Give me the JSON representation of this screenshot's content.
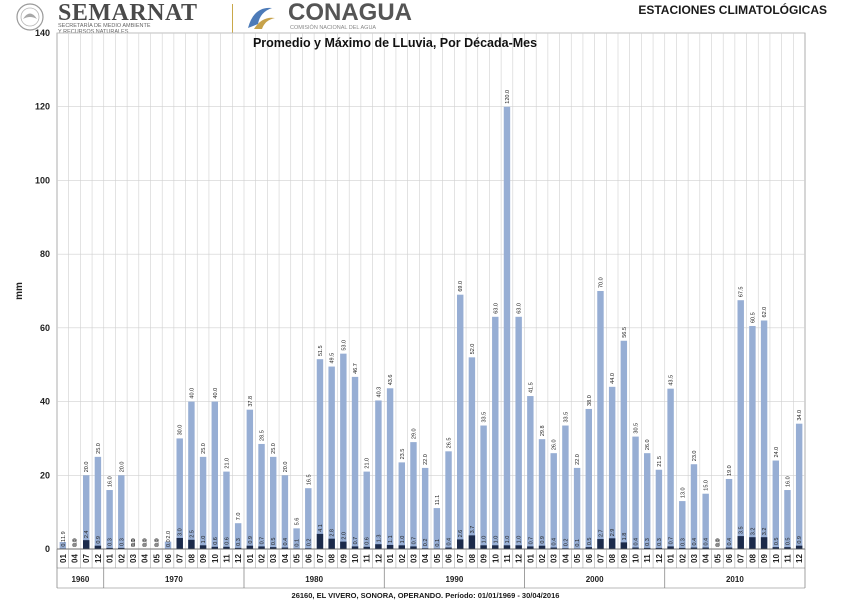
{
  "header": {
    "brand1": "SEMARNAT",
    "brand1_sub_1": "SECRETARÍA DE MEDIO AMBIENTE",
    "brand1_sub_2": "Y RECURSOS NATURALES",
    "brand2": "CONAGUA",
    "brand2_sub": "COMISIÓN NACIONAL DEL AGUA",
    "doc_title": "ESTACIONES CLIMATOLÓGICAS"
  },
  "footer": "26160, EL VIVERO, SONORA, OPERANDO. Período: 01/01/1969 - 30/04/2016",
  "colors": {
    "max_bar": "#97aed4",
    "avg_bar": "#1b2a4a",
    "grid": "#d0d0d0"
  },
  "chart_data": {
    "type": "bar",
    "title": "Promedio y Máximo de LLuvia, Por Década-Mes",
    "ylabel": "mm",
    "ylim": [
      0,
      140
    ],
    "yticks": [
      0,
      20,
      40,
      60,
      80,
      100,
      120,
      140
    ],
    "grid": true,
    "decades": [
      {
        "label": "1960",
        "months": [
          "01",
          "04",
          "07",
          "12"
        ]
      },
      {
        "label": "1970",
        "months": [
          "01",
          "02",
          "03",
          "04",
          "05",
          "06",
          "07",
          "08",
          "09",
          "10",
          "11",
          "12"
        ]
      },
      {
        "label": "1980",
        "months": [
          "01",
          "02",
          "03",
          "04",
          "05",
          "06",
          "07",
          "08",
          "09",
          "10",
          "11",
          "12"
        ]
      },
      {
        "label": "1990",
        "months": [
          "01",
          "02",
          "03",
          "04",
          "05",
          "06",
          "07",
          "08",
          "09",
          "10",
          "11",
          "12"
        ]
      },
      {
        "label": "2000",
        "months": [
          "01",
          "02",
          "03",
          "04",
          "05",
          "06",
          "07",
          "08",
          "09",
          "10",
          "11",
          "12"
        ]
      },
      {
        "label": "2010",
        "months": [
          "01",
          "02",
          "03",
          "04",
          "05",
          "06",
          "07",
          "08",
          "09",
          "10",
          "11",
          "12"
        ]
      }
    ],
    "series": [
      {
        "values": [
          1.9,
          0.0,
          20.0,
          25.0,
          16.0,
          20.0,
          0.0,
          0.0,
          0.0,
          2.0,
          30.0,
          40.0,
          25.0,
          40.0,
          21.0,
          7.0,
          37.8,
          28.5,
          25.0,
          20.0,
          5.6,
          16.5,
          51.5,
          49.5,
          53.0,
          46.7,
          21.0,
          40.3,
          43.6,
          23.5,
          29.0,
          22.0,
          11.1,
          26.5,
          69.0,
          52.0,
          33.5,
          63.0,
          120.0,
          63.0,
          41.5,
          29.8,
          26.0,
          33.5,
          22.0,
          38.0,
          70.0,
          44.0,
          56.5,
          30.5,
          26.0,
          21.5,
          43.5,
          13.0,
          23.0,
          15.0,
          0.0,
          19.0,
          67.5,
          60.5,
          62.0,
          24.0,
          16.0,
          34.0
        ]
      },
      {
        "values": [
          0.1,
          0.0,
          2.4,
          0.9,
          0.3,
          0.3,
          0.0,
          0.0,
          0.0,
          0.0,
          3.0,
          2.5,
          1.0,
          0.6,
          0.6,
          0.3,
          0.9,
          0.7,
          0.5,
          0.4,
          0.1,
          0.2,
          4.1,
          2.8,
          2.0,
          0.7,
          0.6,
          1.3,
          1.1,
          1.0,
          0.7,
          0.2,
          0.1,
          0.4,
          2.6,
          3.7,
          1.0,
          1.0,
          1.0,
          1.0,
          0.7,
          0.9,
          0.4,
          0.2,
          0.1,
          0.5,
          2.7,
          2.9,
          1.8,
          0.4,
          0.3,
          0.3,
          0.7,
          0.3,
          0.4,
          0.4,
          0.0,
          0.4,
          3.5,
          3.2,
          3.2,
          0.5,
          0.5,
          0.9
        ]
      }
    ],
    "max_labels": [
      "1.9",
      "0.0",
      "20.0",
      "25.0",
      "16.0",
      "20.0",
      "0.0",
      "0.0",
      "0.0",
      "2.0",
      "30.0",
      "40.0",
      "25.0",
      "40.0",
      "21.0",
      "7.0",
      "37.8",
      "28.5",
      "25.0",
      "20.0",
      "5.6",
      "16.5",
      "51.5",
      "49.5",
      "53.0",
      "46.7",
      "21.0",
      "40.3",
      "43.6",
      "23.5",
      "29.0",
      "22.0",
      "11.1",
      "26.5",
      "69.0",
      "52.0",
      "33.5",
      "63.0",
      "120.0",
      "63.0",
      "41.5",
      "29.8",
      "26.0",
      "33.5",
      "22.0",
      "38.0",
      "70.0",
      "44.0",
      "56.5",
      "30.5",
      "26.0",
      "21.5",
      "43.5",
      "13.0",
      "23.0",
      "15.0",
      "0.0",
      "19.0",
      "67.5",
      "60.5",
      "62.0",
      "24.0",
      "16.0",
      "34.0"
    ],
    "avg_labels": [
      "0.1",
      "0.0",
      "2.4",
      "0.9",
      "0.3",
      "0.3",
      "0.0",
      "0.0",
      "0.0",
      "0.0",
      "3.0",
      "2.5",
      "1.0",
      "0.6",
      "0.6",
      "0.3",
      "0.9",
      "0.7",
      "0.5",
      "0.4",
      "0.1",
      "0.2",
      "4.1",
      "2.8",
      "2.0",
      "0.7",
      "0.6",
      "1.3",
      "1.1",
      "1.0",
      "0.7",
      "0.2",
      "0.1",
      "0.4",
      "2.6",
      "3.7",
      "1.0",
      "1.0",
      "1.0",
      "1.0",
      "0.7",
      "0.9",
      "0.4",
      "0.2",
      "0.1",
      "0.5",
      "2.7",
      "2.9",
      "1.8",
      "0.4",
      "0.3",
      "0.3",
      "0.7",
      "0.3",
      "0.4",
      "0.4",
      "0.0",
      "0.4",
      "3.5",
      "3.2",
      "3.2",
      "0.5",
      "0.5",
      "0.9"
    ]
  }
}
